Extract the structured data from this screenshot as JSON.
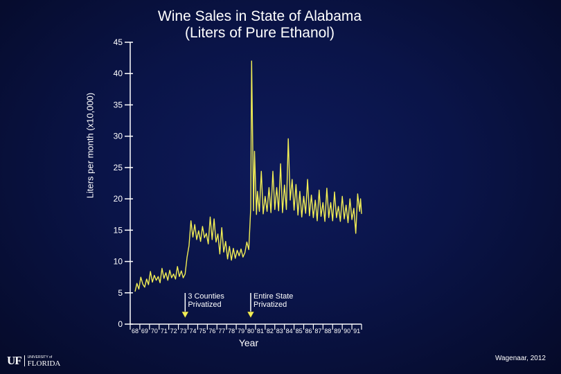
{
  "chart_data": {
    "type": "line",
    "title_line1": "Wine Sales in State of Alabama",
    "title_line2": "(Liters of Pure Ethanol)",
    "xlabel": "Year",
    "ylabel": "Liters per month (x10,000)",
    "ylim": [
      0,
      45
    ],
    "yticks": [
      "0",
      "5",
      "10",
      "15",
      "20",
      "25",
      "30",
      "35",
      "40",
      "45"
    ],
    "xlim": [
      1968,
      1992
    ],
    "xticks": [
      "68",
      "69",
      "70",
      "71",
      "72",
      "73",
      "74",
      "75",
      "76",
      "77",
      "78",
      "79",
      "80",
      "81",
      "82",
      "83",
      "84",
      "85",
      "86",
      "87",
      "88",
      "89",
      "90",
      "91"
    ],
    "series": [
      {
        "color": "#f2ee55",
        "points": [
          [
            1968.5,
            5.2
          ],
          [
            1968.7,
            6.5
          ],
          [
            1968.9,
            5.6
          ],
          [
            1969.1,
            7.5
          ],
          [
            1969.3,
            6.4
          ],
          [
            1969.5,
            5.9
          ],
          [
            1969.7,
            7.2
          ],
          [
            1969.9,
            6.3
          ],
          [
            1970.1,
            8.4
          ],
          [
            1970.3,
            6.7
          ],
          [
            1970.5,
            7.8
          ],
          [
            1970.7,
            7.0
          ],
          [
            1970.9,
            7.6
          ],
          [
            1971.1,
            6.6
          ],
          [
            1971.3,
            8.9
          ],
          [
            1971.5,
            7.3
          ],
          [
            1971.7,
            8.2
          ],
          [
            1971.9,
            7.0
          ],
          [
            1972.1,
            8.6
          ],
          [
            1972.3,
            7.4
          ],
          [
            1972.5,
            8.0
          ],
          [
            1972.7,
            7.2
          ],
          [
            1972.9,
            9.2
          ],
          [
            1973.1,
            7.6
          ],
          [
            1973.3,
            8.5
          ],
          [
            1973.5,
            7.4
          ],
          [
            1973.7,
            8.0
          ],
          [
            1973.9,
            10.7
          ],
          [
            1974.1,
            12.5
          ],
          [
            1974.3,
            16.5
          ],
          [
            1974.5,
            13.9
          ],
          [
            1974.7,
            15.9
          ],
          [
            1974.9,
            13.5
          ],
          [
            1975.1,
            14.9
          ],
          [
            1975.3,
            13.2
          ],
          [
            1975.5,
            15.6
          ],
          [
            1975.7,
            13.8
          ],
          [
            1975.9,
            14.5
          ],
          [
            1976.1,
            12.8
          ],
          [
            1976.3,
            17.1
          ],
          [
            1976.5,
            13.5
          ],
          [
            1976.7,
            16.8
          ],
          [
            1976.9,
            13.1
          ],
          [
            1977.1,
            14.4
          ],
          [
            1977.3,
            11.2
          ],
          [
            1977.5,
            15.4
          ],
          [
            1977.7,
            11.5
          ],
          [
            1977.9,
            13.2
          ],
          [
            1978.1,
            10.4
          ],
          [
            1978.3,
            12.4
          ],
          [
            1978.5,
            10.2
          ],
          [
            1978.7,
            12.1
          ],
          [
            1978.9,
            10.5
          ],
          [
            1979.1,
            11.8
          ],
          [
            1979.3,
            10.9
          ],
          [
            1979.5,
            12.0
          ],
          [
            1979.7,
            10.7
          ],
          [
            1979.9,
            11.4
          ],
          [
            1980.1,
            13.1
          ],
          [
            1980.3,
            11.9
          ],
          [
            1980.5,
            18.5
          ],
          [
            1980.6,
            42.0
          ],
          [
            1980.8,
            18.1
          ],
          [
            1980.9,
            27.6
          ],
          [
            1981.1,
            17.5
          ],
          [
            1981.2,
            21.2
          ],
          [
            1981.4,
            18.0
          ],
          [
            1981.6,
            24.4
          ],
          [
            1981.8,
            17.6
          ],
          [
            1982.0,
            20.4
          ],
          [
            1982.2,
            18.0
          ],
          [
            1982.4,
            21.8
          ],
          [
            1982.6,
            17.8
          ],
          [
            1982.8,
            24.4
          ],
          [
            1983.0,
            18.3
          ],
          [
            1983.2,
            21.8
          ],
          [
            1983.4,
            18.1
          ],
          [
            1983.6,
            25.6
          ],
          [
            1983.8,
            17.8
          ],
          [
            1984.0,
            22.2
          ],
          [
            1984.2,
            18.3
          ],
          [
            1984.4,
            29.6
          ],
          [
            1984.6,
            19.8
          ],
          [
            1984.8,
            23.1
          ],
          [
            1985.0,
            18.2
          ],
          [
            1985.2,
            22.3
          ],
          [
            1985.4,
            17.4
          ],
          [
            1985.6,
            21.2
          ],
          [
            1985.8,
            17.1
          ],
          [
            1986.0,
            20.4
          ],
          [
            1986.2,
            17.7
          ],
          [
            1986.4,
            23.1
          ],
          [
            1986.6,
            17.3
          ],
          [
            1986.8,
            20.6
          ],
          [
            1987.0,
            17.0
          ],
          [
            1987.2,
            19.8
          ],
          [
            1987.4,
            16.5
          ],
          [
            1987.6,
            21.4
          ],
          [
            1987.8,
            17.2
          ],
          [
            1988.0,
            19.4
          ],
          [
            1988.2,
            16.4
          ],
          [
            1988.4,
            21.7
          ],
          [
            1988.6,
            17.0
          ],
          [
            1988.8,
            19.4
          ],
          [
            1989.0,
            16.5
          ],
          [
            1989.2,
            21.1
          ],
          [
            1989.4,
            17.0
          ],
          [
            1989.6,
            18.8
          ],
          [
            1989.8,
            16.4
          ],
          [
            1990.0,
            20.4
          ],
          [
            1990.2,
            16.8
          ],
          [
            1990.4,
            19.0
          ],
          [
            1990.6,
            16.2
          ],
          [
            1990.8,
            20.0
          ],
          [
            1991.0,
            16.7
          ],
          [
            1991.2,
            18.5
          ],
          [
            1991.4,
            14.5
          ],
          [
            1991.6,
            20.8
          ],
          [
            1991.8,
            18.0
          ],
          [
            1991.9,
            20.0
          ],
          [
            1992.0,
            17.6
          ]
        ]
      }
    ],
    "annotations": [
      {
        "line1": "3 Counties",
        "line2": "Privatized",
        "x": 1973.7
      },
      {
        "line1": "Entire State",
        "line2": "Privatized",
        "x": 1980.5
      }
    ]
  },
  "credit": "Wagenaar, 2012",
  "logo": {
    "mark": "UF",
    "small": "UNIVERSITY of",
    "big": "FLORIDA"
  },
  "colors": {
    "background": "#0a1448",
    "line": "#f2ee55",
    "text": "#ffffff"
  }
}
